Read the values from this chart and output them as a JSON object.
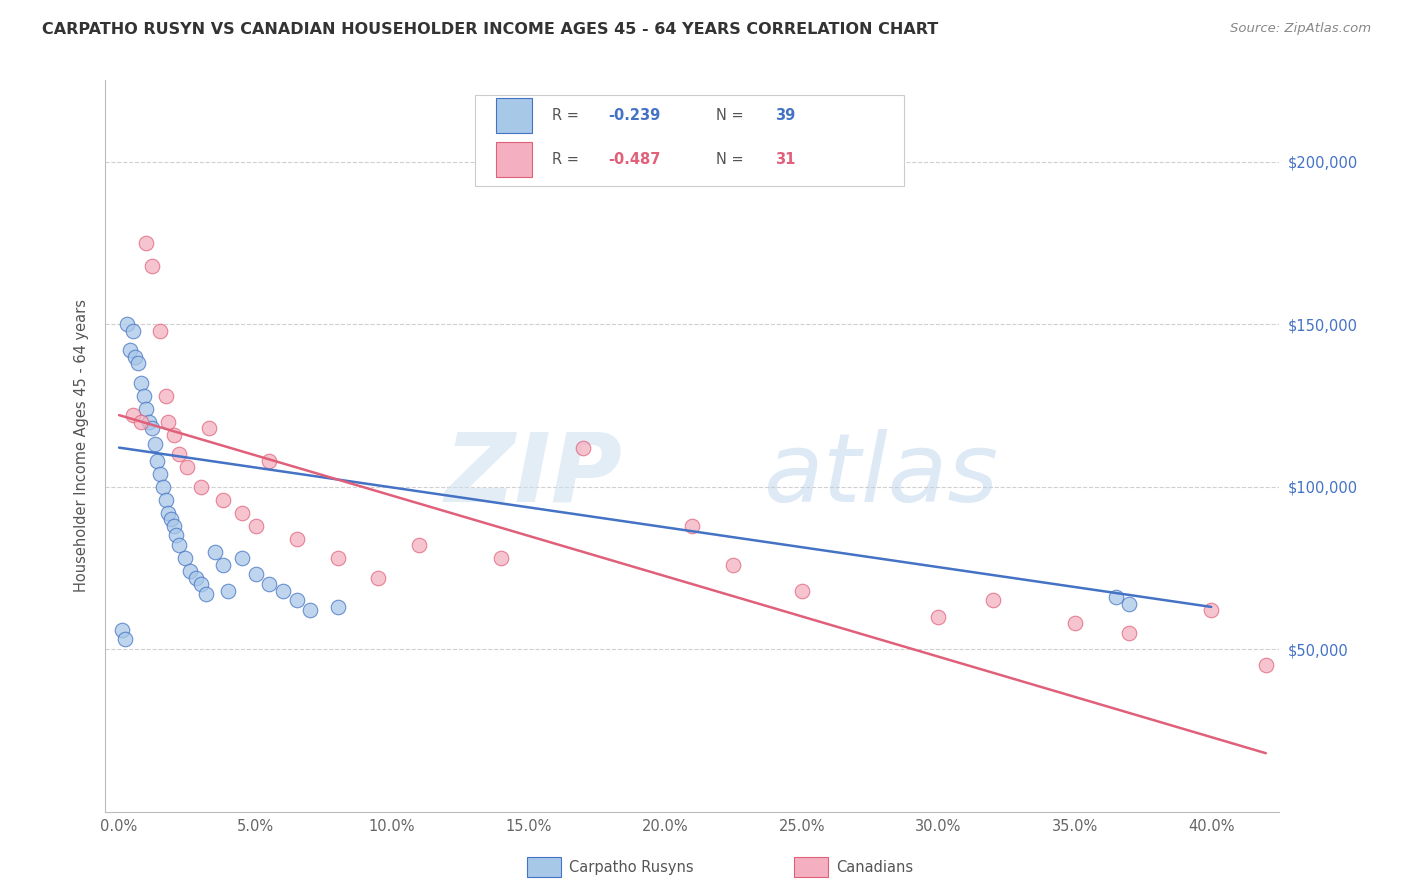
{
  "title": "CARPATHO RUSYN VS CANADIAN HOUSEHOLDER INCOME AGES 45 - 64 YEARS CORRELATION CHART",
  "source": "Source: ZipAtlas.com",
  "ylabel": "Householder Income Ages 45 - 64 years",
  "xtick_positions": [
    0,
    5,
    10,
    15,
    20,
    25,
    30,
    35,
    40
  ],
  "xtick_labels": [
    "0.0%",
    "5.0%",
    "10.0%",
    "15.0%",
    "20.0%",
    "25.0%",
    "30.0%",
    "35.0%",
    "40.0%"
  ],
  "ytick_positions": [
    50000,
    100000,
    150000,
    200000
  ],
  "ytick_labels": [
    "$50,000",
    "$100,000",
    "$150,000",
    "$200,000"
  ],
  "xlim": [
    -0.5,
    42.5
  ],
  "ylim": [
    0,
    225000
  ],
  "blue_R": "-0.239",
  "blue_N": "39",
  "pink_R": "-0.487",
  "pink_N": "31",
  "blue_fill": "#a8c8e8",
  "pink_fill": "#f4b0c0",
  "blue_edge": "#4472c4",
  "pink_edge": "#e0607a",
  "blue_line": "#4472c4",
  "pink_line": "#e0607a",
  "grid_color": "#d0d0d0",
  "blue_scatter_x": [
    0.1,
    0.2,
    0.3,
    0.4,
    0.5,
    0.6,
    0.7,
    0.8,
    0.9,
    1.0,
    1.1,
    1.2,
    1.3,
    1.4,
    1.5,
    1.6,
    1.7,
    1.8,
    1.9,
    2.0,
    2.1,
    2.2,
    2.4,
    2.6,
    2.8,
    3.0,
    3.2,
    3.5,
    3.8,
    4.0,
    4.5,
    5.0,
    5.5,
    6.0,
    6.5,
    7.0,
    8.0,
    36.5,
    37.0
  ],
  "blue_scatter_y": [
    56000,
    53000,
    150000,
    142000,
    148000,
    140000,
    138000,
    132000,
    128000,
    124000,
    120000,
    118000,
    113000,
    108000,
    104000,
    100000,
    96000,
    92000,
    90000,
    88000,
    85000,
    82000,
    78000,
    74000,
    72000,
    70000,
    67000,
    80000,
    76000,
    68000,
    78000,
    73000,
    70000,
    68000,
    65000,
    62000,
    63000,
    66000,
    64000
  ],
  "pink_scatter_x": [
    0.5,
    0.8,
    1.0,
    1.2,
    1.5,
    1.7,
    1.8,
    2.0,
    2.2,
    2.5,
    3.0,
    3.3,
    3.8,
    4.5,
    5.0,
    5.5,
    6.5,
    8.0,
    9.5,
    11.0,
    14.0,
    17.0,
    21.0,
    22.5,
    25.0,
    30.0,
    32.0,
    35.0,
    37.0,
    40.0,
    42.0
  ],
  "pink_scatter_y": [
    122000,
    120000,
    175000,
    168000,
    148000,
    128000,
    120000,
    116000,
    110000,
    106000,
    100000,
    118000,
    96000,
    92000,
    88000,
    108000,
    84000,
    78000,
    72000,
    82000,
    78000,
    112000,
    88000,
    76000,
    68000,
    60000,
    65000,
    58000,
    55000,
    62000,
    45000
  ],
  "blue_trendline_x": [
    0,
    40
  ],
  "blue_trendline_y": [
    112000,
    63000
  ],
  "pink_trendline_x": [
    0,
    42
  ],
  "pink_trendline_y": [
    122000,
    18000
  ]
}
